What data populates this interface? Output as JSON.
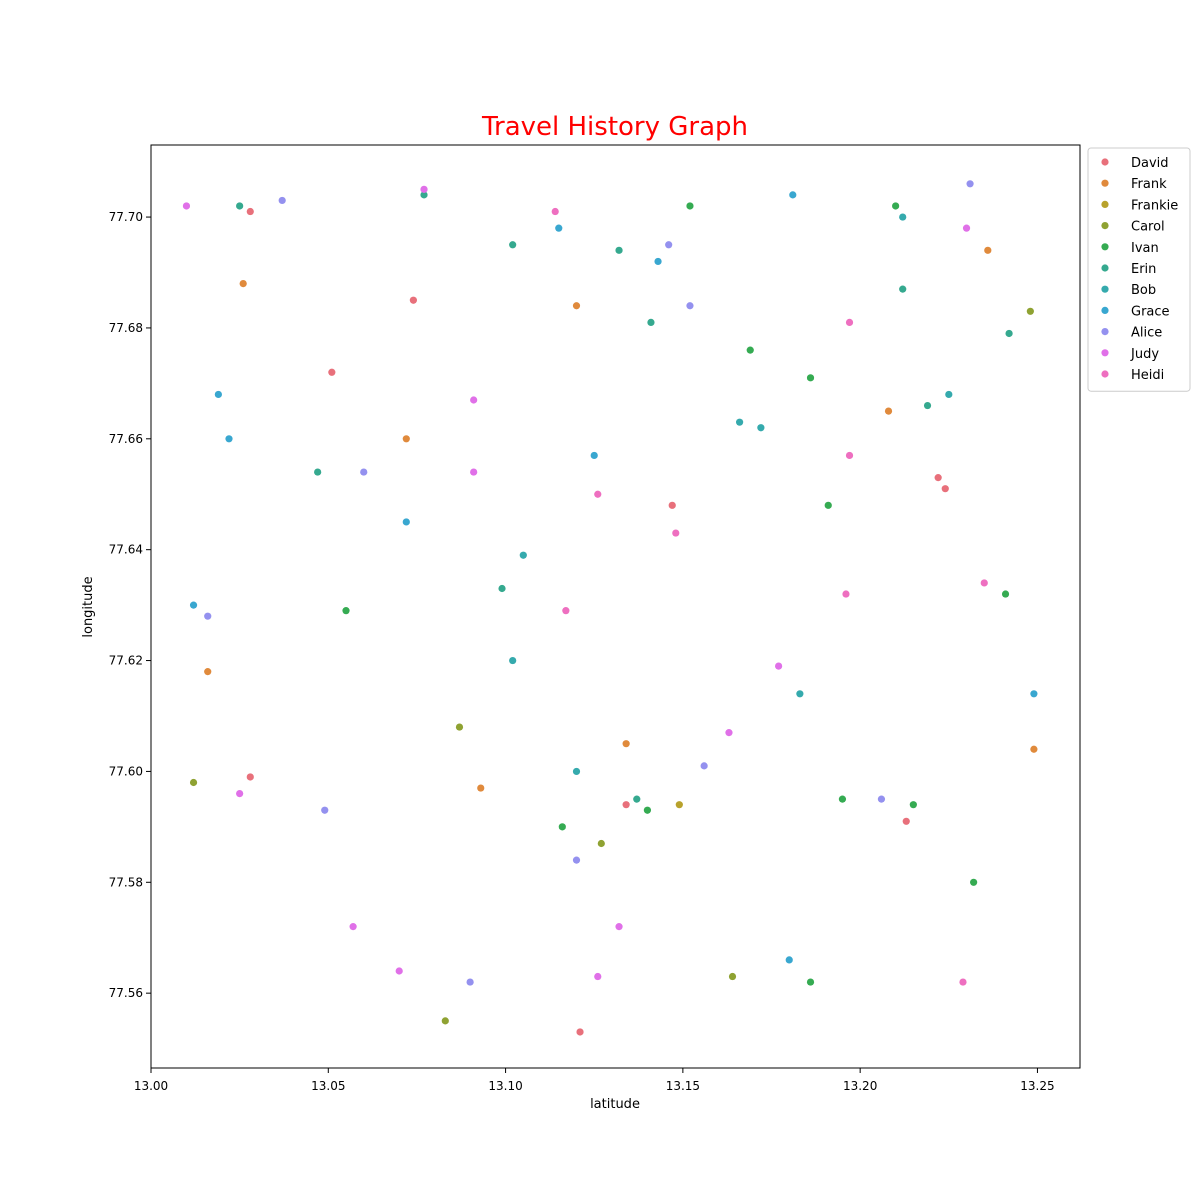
{
  "chart_data": {
    "type": "scatter",
    "title": "Travel History Graph",
    "xlabel": "latitude",
    "ylabel": "longitude",
    "xlim": [
      13.0,
      13.262
    ],
    "ylim": [
      77.5465,
      77.713
    ],
    "xticks": [
      "13.00",
      "13.05",
      "13.10",
      "13.15",
      "13.20",
      "13.25"
    ],
    "yticks": [
      "77.56",
      "77.58",
      "77.60",
      "77.62",
      "77.64",
      "77.66",
      "77.68",
      "77.70"
    ],
    "grid": false,
    "legend_position": "outside-top-right",
    "series": [
      {
        "name": "David",
        "color": "#e8707b",
        "points": [
          [
            13.028,
            77.701
          ],
          [
            13.051,
            77.672
          ],
          [
            13.074,
            77.685
          ],
          [
            13.147,
            77.648
          ],
          [
            13.222,
            77.653
          ],
          [
            13.224,
            77.651
          ],
          [
            13.028,
            77.599
          ],
          [
            13.134,
            77.594
          ],
          [
            13.213,
            77.591
          ],
          [
            13.121,
            77.553
          ]
        ]
      },
      {
        "name": "Frank",
        "color": "#e08a3c",
        "points": [
          [
            13.026,
            77.688
          ],
          [
            13.12,
            77.684
          ],
          [
            13.236,
            77.694
          ],
          [
            13.208,
            77.665
          ],
          [
            13.072,
            77.66
          ],
          [
            13.016,
            77.618
          ],
          [
            13.134,
            77.605
          ],
          [
            13.093,
            77.597
          ],
          [
            13.249,
            77.604
          ]
        ]
      },
      {
        "name": "Frankie",
        "color": "#b8a22c",
        "points": [
          [
            13.149,
            77.594
          ]
        ]
      },
      {
        "name": "Carol",
        "color": "#8fa232",
        "points": [
          [
            13.248,
            77.683
          ],
          [
            13.087,
            77.608
          ],
          [
            13.012,
            77.598
          ],
          [
            13.127,
            77.587
          ],
          [
            13.164,
            77.563
          ],
          [
            13.083,
            77.555
          ]
        ]
      },
      {
        "name": "Ivan",
        "color": "#35ab52",
        "points": [
          [
            13.152,
            77.702
          ],
          [
            13.21,
            77.702
          ],
          [
            13.169,
            77.676
          ],
          [
            13.186,
            77.671
          ],
          [
            13.191,
            77.648
          ],
          [
            13.241,
            77.632
          ],
          [
            13.055,
            77.629
          ],
          [
            13.116,
            77.59
          ],
          [
            13.14,
            77.593
          ],
          [
            13.195,
            77.595
          ],
          [
            13.215,
            77.594
          ],
          [
            13.232,
            77.58
          ],
          [
            13.186,
            77.562
          ]
        ]
      },
      {
        "name": "Erin",
        "color": "#35a98f",
        "points": [
          [
            13.025,
            77.702
          ],
          [
            13.077,
            77.704
          ],
          [
            13.102,
            77.695
          ],
          [
            13.132,
            77.694
          ],
          [
            13.141,
            77.681
          ],
          [
            13.212,
            77.687
          ],
          [
            13.242,
            77.679
          ],
          [
            13.219,
            77.666
          ],
          [
            13.047,
            77.654
          ],
          [
            13.099,
            77.633
          ],
          [
            13.137,
            77.595
          ]
        ]
      },
      {
        "name": "Bob",
        "color": "#35aaad",
        "points": [
          [
            13.212,
            77.7
          ],
          [
            13.225,
            77.668
          ],
          [
            13.166,
            77.663
          ],
          [
            13.172,
            77.662
          ],
          [
            13.105,
            77.639
          ],
          [
            13.102,
            77.62
          ],
          [
            13.183,
            77.614
          ],
          [
            13.12,
            77.6
          ]
        ]
      },
      {
        "name": "Grace",
        "color": "#39a7d0",
        "points": [
          [
            13.181,
            77.704
          ],
          [
            13.115,
            77.698
          ],
          [
            13.143,
            77.692
          ],
          [
            13.019,
            77.668
          ],
          [
            13.022,
            77.66
          ],
          [
            13.125,
            77.657
          ],
          [
            13.072,
            77.645
          ],
          [
            13.012,
            77.63
          ],
          [
            13.249,
            77.614
          ],
          [
            13.18,
            77.566
          ]
        ]
      },
      {
        "name": "Alice",
        "color": "#9491ef",
        "points": [
          [
            13.037,
            77.703
          ],
          [
            13.231,
            77.706
          ],
          [
            13.146,
            77.695
          ],
          [
            13.152,
            77.684
          ],
          [
            13.06,
            77.654
          ],
          [
            13.016,
            77.628
          ],
          [
            13.156,
            77.601
          ],
          [
            13.206,
            77.595
          ],
          [
            13.049,
            77.593
          ],
          [
            13.12,
            77.584
          ],
          [
            13.09,
            77.562
          ]
        ]
      },
      {
        "name": "Judy",
        "color": "#e070e8",
        "points": [
          [
            13.01,
            77.702
          ],
          [
            13.077,
            77.705
          ],
          [
            13.23,
            77.698
          ],
          [
            13.091,
            77.667
          ],
          [
            13.091,
            77.654
          ],
          [
            13.177,
            77.619
          ],
          [
            13.163,
            77.607
          ],
          [
            13.025,
            77.596
          ],
          [
            13.057,
            77.572
          ],
          [
            13.132,
            77.572
          ],
          [
            13.07,
            77.564
          ],
          [
            13.126,
            77.563
          ]
        ]
      },
      {
        "name": "Heidi",
        "color": "#ee6fc0",
        "points": [
          [
            13.114,
            77.701
          ],
          [
            13.197,
            77.681
          ],
          [
            13.197,
            77.657
          ],
          [
            13.126,
            77.65
          ],
          [
            13.148,
            77.643
          ],
          [
            13.196,
            77.632
          ],
          [
            13.235,
            77.634
          ],
          [
            13.117,
            77.629
          ],
          [
            13.229,
            77.562
          ]
        ]
      }
    ]
  }
}
